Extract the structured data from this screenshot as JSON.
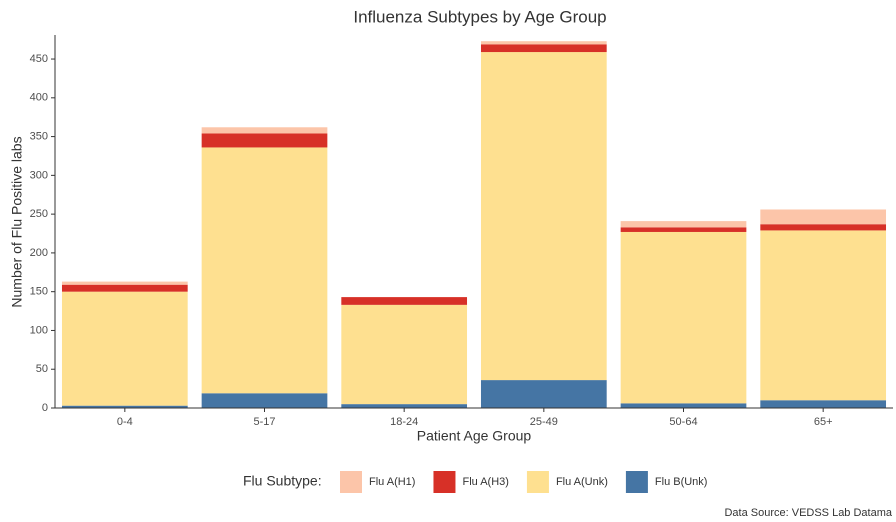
{
  "chart_data": {
    "type": "stacked_bar",
    "title": "Influenza Subtypes by Age Group",
    "x_label": "Patient Age Group",
    "y_label": "Number of Flu Positive labs",
    "legend_title": "Flu Subtype:",
    "source": "Data Source: VEDSS Lab Datama",
    "categories": [
      "0-4",
      "5-17",
      "18-24",
      "25-49",
      "50-64",
      "65+"
    ],
    "series": [
      {
        "name": "Flu A(H1)",
        "color": "#fcc5a9",
        "values": [
          4,
          8,
          0,
          4,
          8,
          19
        ]
      },
      {
        "name": "Flu A(H3)",
        "color": "#d73027",
        "values": [
          9,
          18,
          10,
          10,
          6,
          8
        ]
      },
      {
        "name": "Flu A(Unk)",
        "color": "#fee090",
        "values": [
          147,
          317,
          128,
          423,
          221,
          219
        ]
      },
      {
        "name": "Flu B(Unk)",
        "color": "#4575a4",
        "values": [
          3,
          19,
          5,
          36,
          6,
          10
        ]
      }
    ],
    "ylim": [
      0,
      481
    ],
    "yticks": [
      0,
      50,
      100,
      150,
      200,
      250,
      300,
      350,
      400,
      450
    ],
    "legend_position": "bottom"
  }
}
